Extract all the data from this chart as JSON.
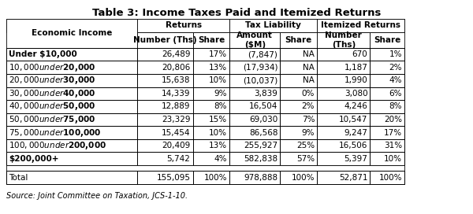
{
  "title": "Table 3: Income Taxes Paid and Itemized Returns",
  "source": "Source: Joint Committee on Taxation, JCS-1-10.",
  "col0_header": "Economic Income",
  "rows": [
    [
      "Under $10,000",
      "26,489",
      "17%",
      "(7,847)",
      "NA",
      "670",
      "1%"
    ],
    [
      "$10,000 under $20,000",
      "20,806",
      "13%",
      "(17,934)",
      "NA",
      "1,187",
      "2%"
    ],
    [
      "$20,000 under $30,000",
      "15,638",
      "10%",
      "(10,037)",
      "NA",
      "1,990",
      "4%"
    ],
    [
      "$30,000 under $40,000",
      "14,339",
      "9%",
      "3,839",
      "0%",
      "3,080",
      "6%"
    ],
    [
      "$40,000 under $50,000",
      "12,889",
      "8%",
      "16,504",
      "2%",
      "4,246",
      "8%"
    ],
    [
      "$50,000 under $75,000",
      "23,329",
      "15%",
      "69,030",
      "7%",
      "10,547",
      "20%"
    ],
    [
      "$75,000 under $100,000",
      "15,454",
      "10%",
      "86,568",
      "9%",
      "9,247",
      "17%"
    ],
    [
      "$100,000 under $200,000",
      "20,409",
      "13%",
      "255,927",
      "25%",
      "16,506",
      "31%"
    ],
    [
      "$200,000+",
      "5,742",
      "4%",
      "582,838",
      "57%",
      "5,397",
      "10%"
    ]
  ],
  "total_row": [
    "Total",
    "155,095",
    "100%",
    "978,888",
    "100%",
    "52,871",
    "100%"
  ],
  "title_fontsize": 9.5,
  "header_fontsize": 7.5,
  "cell_fontsize": 7.5,
  "source_fontsize": 7.0
}
